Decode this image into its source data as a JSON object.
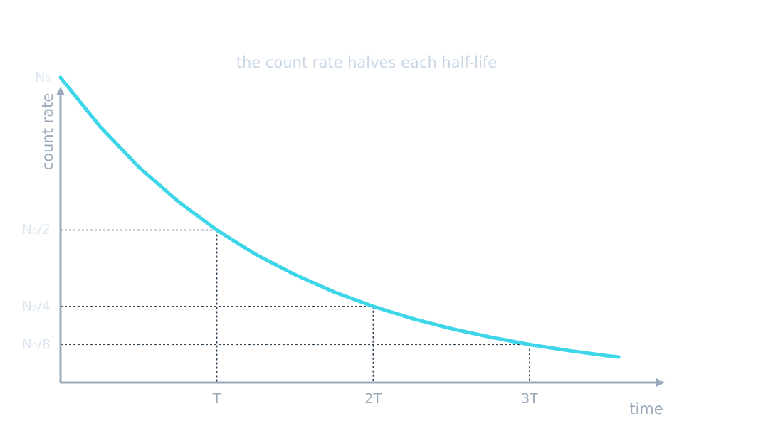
{
  "chart_data": {
    "type": "line",
    "title": "the count rate halves each half-life",
    "x_label": "time",
    "y_label": "count rate",
    "x": [
      0,
      0.25,
      0.5,
      0.75,
      1,
      1.25,
      1.5,
      1.75,
      2,
      2.25,
      2.5,
      2.75,
      3,
      3.25,
      3.5,
      3.57
    ],
    "values": [
      1,
      0.841,
      0.707,
      0.595,
      0.5,
      0.42,
      0.354,
      0.297,
      0.25,
      0.21,
      0.177,
      0.149,
      0.125,
      0.105,
      0.088,
      0.084
    ],
    "color": "#3dd6e8",
    "xlim": [
      0,
      3.87
    ],
    "ylim": [
      0,
      1
    ],
    "xticks": [
      {
        "value": 1,
        "label": "T"
      },
      {
        "value": 2,
        "label": "2T"
      },
      {
        "value": 3,
        "label": "3T"
      }
    ],
    "yticks": [
      {
        "value": 1,
        "label": "N₀"
      },
      {
        "value": 0.5,
        "label": "N₀/2"
      },
      {
        "value": 0.25,
        "label": "N₀/4"
      },
      {
        "value": 0.125,
        "label": "N₀/8"
      }
    ]
  }
}
